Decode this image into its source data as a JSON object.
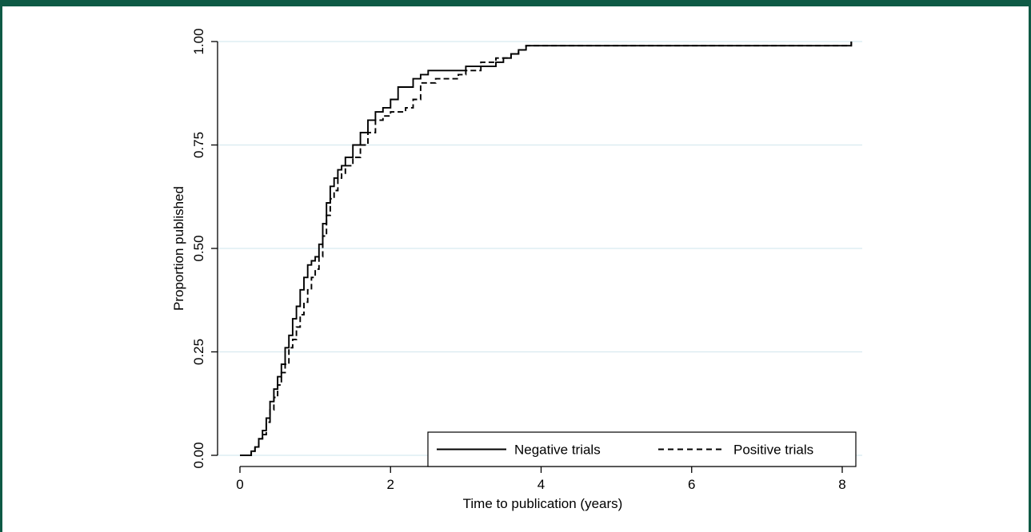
{
  "chart_data": {
    "type": "line",
    "title": "",
    "xlabel": "Time to publication (years)",
    "ylabel": "Proportion published",
    "xlim": [
      0,
      8.25
    ],
    "ylim": [
      0,
      1
    ],
    "x_ticks": [
      0,
      2,
      4,
      6,
      8
    ],
    "x_tick_labels": [
      "0",
      "2",
      "4",
      "6",
      "8"
    ],
    "y_ticks": [
      0,
      0.25,
      0.5,
      0.75,
      1
    ],
    "y_tick_labels": [
      "0.00",
      "0.25",
      "0.50",
      "0.75",
      "1.00"
    ],
    "grid": "horizontal",
    "legend": {
      "position": "bottom-right",
      "entries": [
        "Negative trials",
        "Positive trials"
      ]
    },
    "series": [
      {
        "name": "Negative trials",
        "line_style": "solid",
        "x": [
          0,
          0.15,
          0.2,
          0.25,
          0.3,
          0.35,
          0.4,
          0.45,
          0.5,
          0.55,
          0.6,
          0.65,
          0.7,
          0.75,
          0.8,
          0.85,
          0.9,
          0.95,
          1.0,
          1.05,
          1.1,
          1.15,
          1.2,
          1.25,
          1.3,
          1.35,
          1.4,
          1.5,
          1.6,
          1.7,
          1.8,
          1.9,
          2.0,
          2.1,
          2.2,
          2.3,
          2.4,
          2.5,
          2.6,
          2.7,
          2.8,
          2.9,
          3.0,
          3.2,
          3.4,
          3.5,
          3.6,
          3.7,
          3.8,
          4.0,
          5.0,
          6.0,
          7.0,
          8.0,
          8.12
        ],
        "y": [
          0,
          0.01,
          0.02,
          0.04,
          0.06,
          0.09,
          0.13,
          0.16,
          0.19,
          0.22,
          0.26,
          0.29,
          0.33,
          0.36,
          0.4,
          0.43,
          0.46,
          0.47,
          0.48,
          0.51,
          0.56,
          0.61,
          0.65,
          0.67,
          0.69,
          0.7,
          0.72,
          0.75,
          0.78,
          0.81,
          0.83,
          0.84,
          0.86,
          0.89,
          0.89,
          0.91,
          0.92,
          0.93,
          0.93,
          0.93,
          0.93,
          0.93,
          0.94,
          0.94,
          0.95,
          0.96,
          0.97,
          0.98,
          0.99,
          0.99,
          0.99,
          0.99,
          0.99,
          0.99,
          1.0
        ]
      },
      {
        "name": "Positive trials",
        "line_style": "dashed",
        "x": [
          0,
          0.15,
          0.2,
          0.25,
          0.3,
          0.35,
          0.4,
          0.45,
          0.5,
          0.55,
          0.6,
          0.65,
          0.7,
          0.75,
          0.8,
          0.85,
          0.9,
          0.95,
          1.0,
          1.05,
          1.1,
          1.15,
          1.2,
          1.25,
          1.3,
          1.35,
          1.4,
          1.5,
          1.6,
          1.7,
          1.8,
          1.9,
          2.0,
          2.1,
          2.2,
          2.3,
          2.4,
          2.5,
          2.6,
          2.7,
          2.8,
          2.9,
          3.0,
          3.2,
          3.4,
          3.5,
          3.6,
          3.7,
          3.8,
          4.0,
          5.0,
          6.0,
          7.0,
          8.0,
          8.12
        ],
        "y": [
          0,
          0.01,
          0.02,
          0.04,
          0.05,
          0.08,
          0.11,
          0.14,
          0.17,
          0.2,
          0.22,
          0.26,
          0.28,
          0.31,
          0.34,
          0.37,
          0.4,
          0.43,
          0.45,
          0.48,
          0.53,
          0.58,
          0.62,
          0.64,
          0.67,
          0.68,
          0.7,
          0.72,
          0.75,
          0.78,
          0.81,
          0.82,
          0.83,
          0.83,
          0.84,
          0.86,
          0.9,
          0.9,
          0.91,
          0.91,
          0.91,
          0.92,
          0.93,
          0.95,
          0.96,
          0.96,
          0.97,
          0.98,
          0.99,
          0.99,
          0.99,
          0.99,
          0.99,
          0.99,
          1.0
        ]
      }
    ]
  }
}
